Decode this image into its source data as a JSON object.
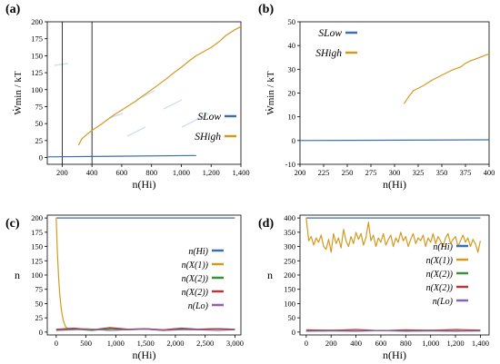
{
  "figure": {
    "panels": [
      "(a)",
      "(b)",
      "(c)",
      "(d)"
    ]
  },
  "colors": {
    "blue": "#3a6fb0",
    "orange": "#d39a1e",
    "green": "#3a8f3a",
    "red": "#b43a3a",
    "purple": "#8a63b0",
    "dash": "#bcd3f2"
  },
  "chart_data": [
    {
      "type": "line",
      "panel_label": "(a)",
      "xlabel": "n(Hi)",
      "ylabel": "Ẇmin / kT",
      "xlim": [
        100,
        1400
      ],
      "ylim": [
        -10,
        200
      ],
      "xticks": [
        200,
        400,
        600,
        800,
        "1,000",
        "1,200",
        "1,400"
      ],
      "yticks": [
        0,
        25,
        50,
        75,
        100,
        125,
        150,
        175,
        200
      ],
      "vlines": [
        200,
        400
      ],
      "legend_placement": "center-right",
      "series": [
        {
          "name": "SLow",
          "color": "blue",
          "x": [
            100,
            1100
          ],
          "y": [
            1,
            3
          ]
        },
        {
          "name": "SHigh",
          "color": "orange",
          "x": [
            310,
            330,
            360,
            400,
            450,
            500,
            550,
            600,
            650,
            700,
            750,
            800,
            850,
            900,
            950,
            1000,
            1050,
            1100,
            1150,
            1200,
            1250,
            1300,
            1350,
            1400
          ],
          "y": [
            18,
            27,
            33,
            40,
            47,
            55,
            63,
            70,
            77,
            84,
            92,
            100,
            108,
            116,
            125,
            133,
            142,
            150,
            156,
            162,
            170,
            180,
            187,
            193
          ]
        }
      ]
    },
    {
      "type": "line",
      "panel_label": "(b)",
      "xlabel": "n(Hi)",
      "ylabel": "Ẇmin / kT",
      "xlim": [
        200,
        400
      ],
      "ylim": [
        -10,
        50
      ],
      "xticks": [
        200,
        225,
        250,
        275,
        300,
        325,
        350,
        375,
        400
      ],
      "yticks": [
        -10,
        0,
        10,
        20,
        30,
        40,
        50
      ],
      "legend_placement": "top-left",
      "series": [
        {
          "name": "SLow",
          "color": "blue",
          "x": [
            200,
            400
          ],
          "y": [
            0,
            0.3
          ]
        },
        {
          "name": "SHigh",
          "color": "orange",
          "x": [
            310,
            315,
            320,
            330,
            340,
            350,
            360,
            370,
            375,
            380,
            390,
            400
          ],
          "y": [
            15.5,
            18.5,
            21,
            23,
            25.5,
            27.5,
            29.5,
            31,
            32.5,
            33.5,
            35,
            36.5
          ]
        }
      ]
    },
    {
      "type": "line",
      "panel_label": "(c)",
      "xlabel": "n(Hi)",
      "ylabel": "n",
      "xlim": [
        -150,
        3100
      ],
      "ylim": [
        -5,
        205
      ],
      "xticks": [
        0,
        500,
        "1,000",
        "1,500",
        "2,000",
        "2,500",
        "3,000"
      ],
      "yticks": [
        0,
        25,
        50,
        75,
        100,
        125,
        150,
        175,
        200
      ],
      "legend_placement": "right",
      "legend_labels": [
        "n(Hi)",
        "n(X(1))",
        "n(X(2))",
        "n(X(2))",
        "n(Lo)"
      ],
      "series": [
        {
          "name": "n(Hi)",
          "color": "blue",
          "x": [
            0,
            3000
          ],
          "y": [
            200,
            200
          ]
        },
        {
          "name": "n(X(1))",
          "color": "orange",
          "x": [
            0,
            20,
            40,
            60,
            80,
            100,
            120,
            140,
            160,
            200,
            300,
            500,
            800,
            1000,
            1200,
            1500,
            1800,
            2000,
            2300,
            2600,
            3000
          ],
          "y": [
            200,
            140,
            95,
            65,
            45,
            30,
            20,
            14,
            9,
            6,
            5,
            6,
            4,
            7,
            5,
            6,
            4,
            6,
            5,
            6,
            5
          ]
        },
        {
          "name": "n(X(2))",
          "color": "green",
          "x": [
            0,
            300,
            600,
            900,
            1200,
            1500,
            1800,
            2100,
            2400,
            2700,
            3000
          ],
          "y": [
            4,
            5,
            3,
            6,
            4,
            5,
            3,
            5,
            4,
            6,
            4
          ]
        },
        {
          "name": "n(X(2))",
          "color": "red",
          "x": [
            0,
            300,
            600,
            900,
            1200,
            1500,
            1800,
            2100,
            2400,
            2700,
            3000
          ],
          "y": [
            5,
            7,
            4,
            8,
            5,
            6,
            4,
            7,
            5,
            6,
            5
          ]
        },
        {
          "name": "n(Lo)",
          "color": "purple",
          "x": [
            0,
            300,
            600,
            900,
            1200,
            1500,
            1800,
            2100,
            2400,
            2700,
            3000
          ],
          "y": [
            3,
            4,
            5,
            3,
            4,
            5,
            3,
            4,
            4,
            3,
            4
          ]
        }
      ]
    },
    {
      "type": "line",
      "panel_label": "(d)",
      "xlabel": "n(Hi)",
      "ylabel": "n",
      "xlim": [
        -50,
        1470
      ],
      "ylim": [
        -10,
        410
      ],
      "xticks": [
        0,
        200,
        400,
        600,
        800,
        "1,000",
        "1,200",
        "1,400"
      ],
      "yticks": [
        0,
        50,
        100,
        150,
        200,
        250,
        300,
        350,
        400
      ],
      "legend_placement": "right",
      "legend_labels": [
        "n(Hi)",
        "n(X(1))",
        "n(X(2))",
        "n(X(2))",
        "n(Lo)"
      ],
      "series": [
        {
          "name": "n(Hi)",
          "color": "blue",
          "x": [
            0,
            1400
          ],
          "y": [
            400,
            400
          ]
        },
        {
          "name": "n(X(1))",
          "color": "orange",
          "x": [
            0,
            20,
            40,
            60,
            80,
            100,
            120,
            140,
            160,
            180,
            200,
            220,
            240,
            260,
            280,
            300,
            320,
            340,
            360,
            380,
            400,
            420,
            440,
            460,
            480,
            500,
            520,
            540,
            560,
            580,
            600,
            620,
            640,
            660,
            680,
            700,
            720,
            740,
            760,
            780,
            800,
            820,
            840,
            860,
            880,
            900,
            920,
            940,
            960,
            980,
            1000,
            1020,
            1040,
            1060,
            1080,
            1100,
            1120,
            1140,
            1160,
            1180,
            1200,
            1220,
            1240,
            1260,
            1280,
            1300,
            1320,
            1340,
            1360,
            1380,
            1400
          ],
          "y": [
            400,
            320,
            335,
            305,
            330,
            315,
            340,
            300,
            290,
            325,
            280,
            345,
            310,
            330,
            295,
            360,
            320,
            300,
            335,
            310,
            350,
            325,
            345,
            305,
            330,
            385,
            320,
            340,
            300,
            330,
            315,
            345,
            305,
            325,
            340,
            300,
            330,
            315,
            350,
            320,
            335,
            300,
            325,
            345,
            310,
            330,
            320,
            340,
            300,
            330,
            315,
            345,
            310,
            335,
            320,
            300,
            330,
            345,
            310,
            325,
            335,
            300,
            320,
            340,
            315,
            330,
            300,
            325,
            310,
            280,
            320
          ]
        },
        {
          "name": "n(X(2))",
          "color": "green",
          "x": [
            0,
            200,
            400,
            600,
            800,
            1000,
            1200,
            1400
          ],
          "y": [
            5,
            7,
            4,
            6,
            5,
            7,
            4,
            6
          ]
        },
        {
          "name": "n(X(2))",
          "color": "red",
          "x": [
            0,
            200,
            400,
            600,
            800,
            1000,
            1200,
            1400
          ],
          "y": [
            8,
            6,
            9,
            5,
            8,
            6,
            9,
            7
          ]
        },
        {
          "name": "n(Lo)",
          "color": "purple",
          "x": [
            0,
            200,
            400,
            600,
            800,
            1000,
            1200,
            1400
          ],
          "y": [
            3,
            4,
            3,
            5,
            3,
            4,
            3,
            4
          ]
        }
      ]
    }
  ]
}
